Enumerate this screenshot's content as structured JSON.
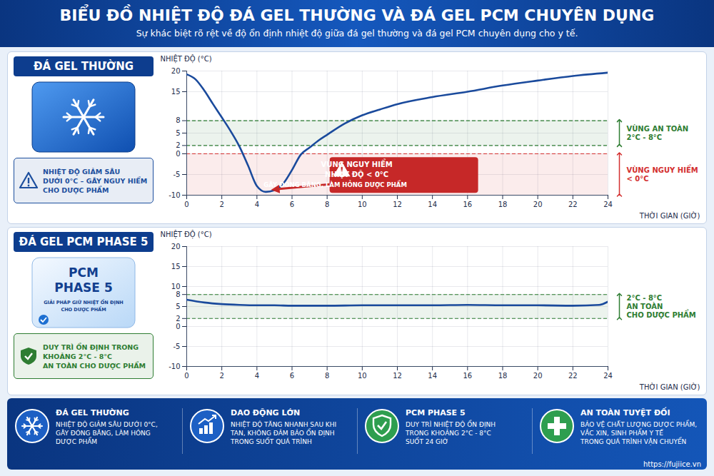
{
  "header": {
    "title": "BIỂU ĐỒ NHIỆT ĐỘ ĐÁ GEL THƯỜNG VÀ ĐÁ GEL PCM CHUYÊN DỤNG",
    "subtitle": "Sự khác biệt rõ rệt về độ ổn định nhiệt độ giữa đá gel thường và đá gel PCM chuyên dụng cho y tế."
  },
  "chart_data": [
    {
      "type": "line",
      "title": "ĐÁ GEL THƯỜNG",
      "note": {
        "lines": [
          "NHIỆT ĐỘ GIẢM SÂU",
          "DƯỚI 0°C – GÂY NGUY HIỂM",
          "CHO DƯỢC PHẨM"
        ],
        "color": "#1d4f9e"
      },
      "xlabel": "THỜI GIAN (GIỜ)",
      "ylabel": "NHIỆT ĐỘ (°C)",
      "x": [
        0,
        0.5,
        1,
        1.5,
        2,
        2.5,
        3,
        3.5,
        4,
        4.5,
        5,
        5.5,
        6,
        6.5,
        7,
        7.5,
        8,
        9,
        10,
        11,
        12,
        14,
        16,
        18,
        20,
        22,
        24
      ],
      "values": [
        19.2,
        18,
        15.3,
        12,
        8.8,
        5.5,
        1.8,
        -2.9,
        -7.8,
        -9.2,
        -8.8,
        -7.2,
        -3.9,
        -0.2,
        1.5,
        3.2,
        4.6,
        7.3,
        9.3,
        10.7,
        12,
        13.7,
        15,
        16.5,
        17.7,
        18.8,
        19.6
      ],
      "color": "#1a4a9c",
      "xlim": [
        0,
        24
      ],
      "ylim": [
        -10,
        20
      ],
      "xticks": [
        0,
        2,
        4,
        6,
        8,
        10,
        12,
        14,
        16,
        18,
        20,
        22,
        24
      ],
      "yticks": [
        -10,
        -5,
        0,
        2,
        5,
        8,
        15,
        20
      ],
      "grid": true,
      "zones": [
        {
          "from": 2,
          "to": 8,
          "label": [
            "VÙNG AN TOÀN",
            "2°C - 8°C"
          ],
          "color": "#2e7d32"
        },
        {
          "from": -10,
          "to": 0,
          "label": [
            "VÙNG NGUY HIỂM",
            "< 0°C"
          ],
          "color": "#d32f2f"
        }
      ],
      "annotation": {
        "lines": [
          "VÙNG NGUY HIỂM",
          "NHIỆT ĐỘ < 0°C",
          "GÂY ĐÓNG BĂNG, LÀM HỎNG DƯỢC PHẨM"
        ],
        "color": "#c62828"
      }
    },
    {
      "type": "line",
      "title": "ĐÁ GEL PCM PHASE 5",
      "pack_labels": [
        "PCM",
        "PHASE 5",
        "GIẢI PHÁP GIỮ NHIỆT ỔN ĐỊNH",
        "CHO DƯỢC PHẨM"
      ],
      "note": {
        "lines": [
          "DUY TRÌ ỔN ĐỊNH TRONG",
          "KHOẢNG 2°C - 8°C",
          "AN TOÀN CHO DƯỢC PHẨM"
        ],
        "color": "#2e7d32"
      },
      "xlabel": "THỜI GIAN (GIỜ)",
      "ylabel": "NHIỆT ĐỘ (°C)",
      "x": [
        0,
        1,
        2,
        3,
        4,
        5,
        6,
        8,
        10,
        12,
        14,
        16,
        18,
        20,
        22,
        23.5,
        24
      ],
      "values": [
        6.7,
        6.0,
        5.6,
        5.4,
        5.3,
        5.3,
        5.2,
        5.2,
        5.3,
        5.3,
        5.3,
        5.4,
        5.3,
        5.3,
        5.2,
        5.4,
        6.2
      ],
      "color": "#1a4a9c",
      "xlim": [
        0,
        24
      ],
      "ylim": [
        -10,
        20
      ],
      "xticks": [
        0,
        2,
        4,
        6,
        8,
        10,
        12,
        14,
        16,
        18,
        20,
        22,
        24
      ],
      "yticks": [
        -10,
        -5,
        0,
        2,
        5,
        8,
        10,
        15,
        20
      ],
      "grid": true,
      "zones": [
        {
          "from": 2,
          "to": 8,
          "label": [
            "2°C - 8°C",
            "AN TOÀN",
            "CHO DƯỢC PHẨM"
          ],
          "color": "#2e7d32"
        }
      ]
    }
  ],
  "footer": [
    {
      "title": "ĐÁ GEL THƯỜNG",
      "lines": [
        "NHIỆT ĐỘ GIẢM SÂU DƯỚI 0°C,",
        "GÂY ĐÓNG BĂNG, LÀM HỎNG",
        "DƯỢC PHẨM"
      ]
    },
    {
      "title": "DAO ĐỘNG LỚN",
      "lines": [
        "NHIỆT ĐỘ TĂNG NHANH SAU KHI",
        "TAN, KHÔNG ĐẢM BẢO ỔN ĐỊNH",
        "TRONG SUỐT QUÁ TRÌNH"
      ]
    },
    {
      "title": "PCM PHASE 5",
      "lines": [
        "DUY TRÌ NHIỆT ĐỘ ỔN ĐỊNH",
        "TRONG KHOẢNG 2°C - 8°C",
        "SUỐT 24 GIỜ"
      ]
    },
    {
      "title": "AN TOÀN TUYỆT ĐỐI",
      "lines": [
        "BẢO VỆ CHẤT LƯỢNG DƯỢC PHẨM,",
        "VẮC XIN, SINH PHẨM Y TẾ",
        "TRONG QUÁ TRÌNH VẬN CHUYỂN"
      ]
    }
  ],
  "source": "https://fujiice.vn"
}
